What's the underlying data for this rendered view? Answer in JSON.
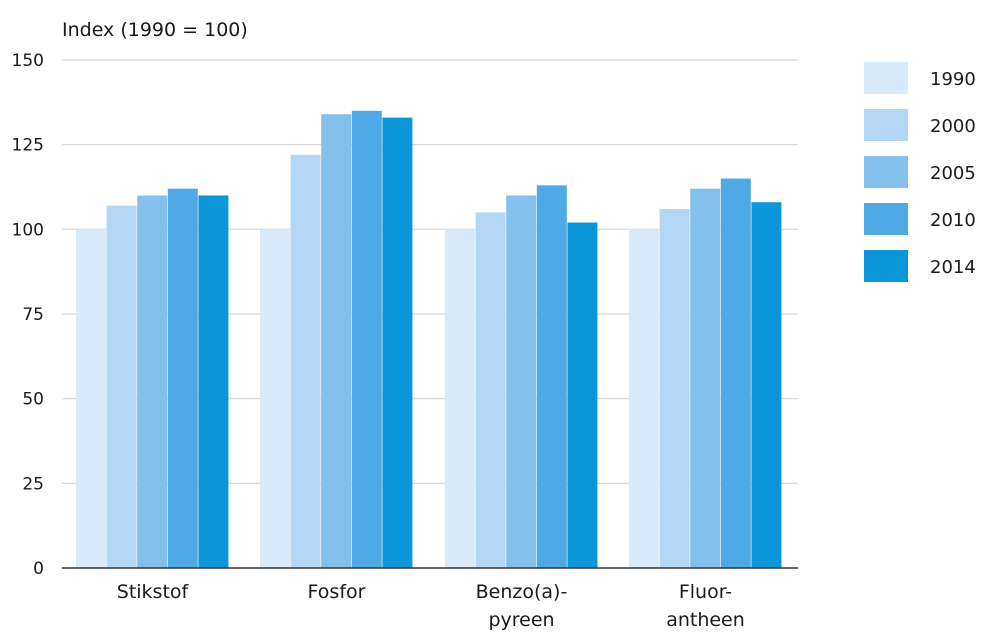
{
  "chart_data": {
    "type": "bar",
    "title": "",
    "ylabel": "Index (1990 = 100)",
    "xlabel": "",
    "ylim": [
      0,
      150
    ],
    "yticks": [
      0,
      25,
      50,
      75,
      100,
      125,
      150
    ],
    "grid": true,
    "legend_position": "right",
    "categories": [
      [
        "Stikstof"
      ],
      [
        "Fosfor"
      ],
      [
        "Benzo(a)-",
        "pyreen"
      ],
      [
        "Fluor-",
        "antheen"
      ]
    ],
    "series": [
      {
        "name": "1990",
        "color": "#d9eaf9",
        "values": [
          100,
          100,
          100,
          100
        ]
      },
      {
        "name": "2000",
        "color": "#b4d6f5",
        "values": [
          107,
          122,
          105,
          106
        ]
      },
      {
        "name": "2005",
        "color": "#84c0ec",
        "values": [
          110,
          134,
          110,
          112
        ]
      },
      {
        "name": "2010",
        "color": "#4fa9e5",
        "values": [
          112,
          135,
          113,
          115
        ]
      },
      {
        "name": "2014",
        "color": "#0a96d9",
        "values": [
          110,
          133,
          102,
          108
        ]
      }
    ]
  }
}
